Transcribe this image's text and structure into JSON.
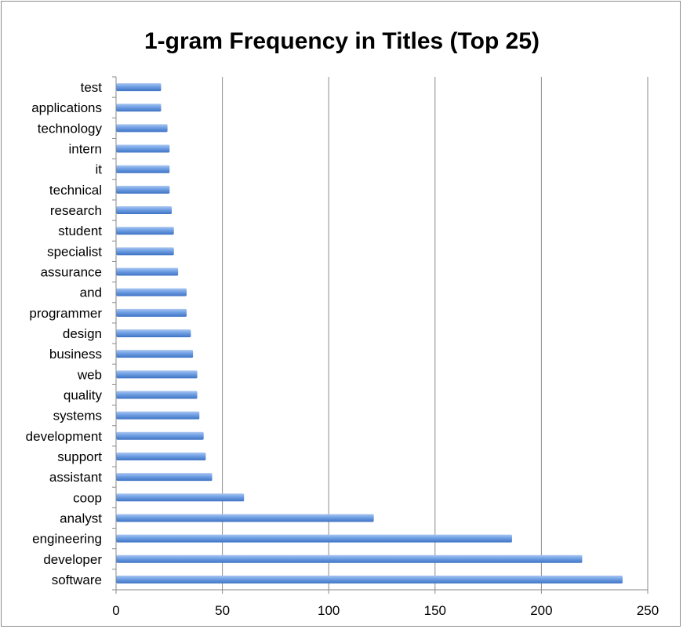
{
  "chart_data": {
    "type": "bar",
    "orientation": "horizontal",
    "title": "1-gram Frequency in Titles (Top 25)",
    "xlabel": "",
    "ylabel": "",
    "xlim": [
      0,
      250
    ],
    "x_ticks": [
      0,
      50,
      100,
      150,
      200,
      250
    ],
    "grid": "vertical",
    "legend": "none",
    "bar_color": "#5b8fd9",
    "categories": [
      "software",
      "developer",
      "engineering",
      "analyst",
      "coop",
      "assistant",
      "support",
      "development",
      "systems",
      "quality",
      "web",
      "business",
      "design",
      "programmer",
      "and",
      "assurance",
      "specialist",
      "student",
      "research",
      "technical",
      "it",
      "intern",
      "technology",
      "applications",
      "test"
    ],
    "values": [
      238,
      219,
      186,
      121,
      60,
      45,
      42,
      41,
      39,
      38,
      38,
      36,
      35,
      33,
      33,
      29,
      27,
      27,
      26,
      25,
      25,
      25,
      24,
      21,
      21
    ]
  }
}
